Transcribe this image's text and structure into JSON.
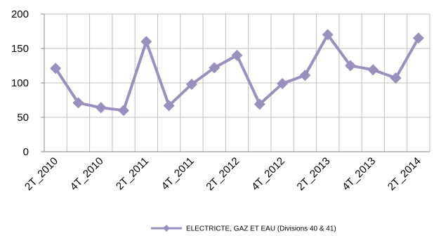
{
  "chart_data": {
    "type": "line",
    "categories": [
      "2T_2010",
      null,
      "4T_2010",
      null,
      "2T_2011",
      null,
      "4T_2011",
      null,
      "2T_2012",
      null,
      "4T_2012",
      null,
      "2T_2013",
      null,
      "4T_2013",
      null,
      "2T_2014"
    ],
    "series": [
      {
        "name": "ELECTRICTE, GAZ ET EAU (Divisions 40 & 41)",
        "color": "#9b8fc0",
        "values": [
          121,
          71,
          64,
          60,
          160,
          67,
          98,
          122,
          140,
          69,
          99,
          111,
          170,
          125,
          119,
          107,
          165
        ]
      }
    ],
    "ylim": [
      0,
      200
    ],
    "yticks": [
      0,
      50,
      100,
      150,
      200
    ],
    "grid": true,
    "legend": "bottom"
  }
}
